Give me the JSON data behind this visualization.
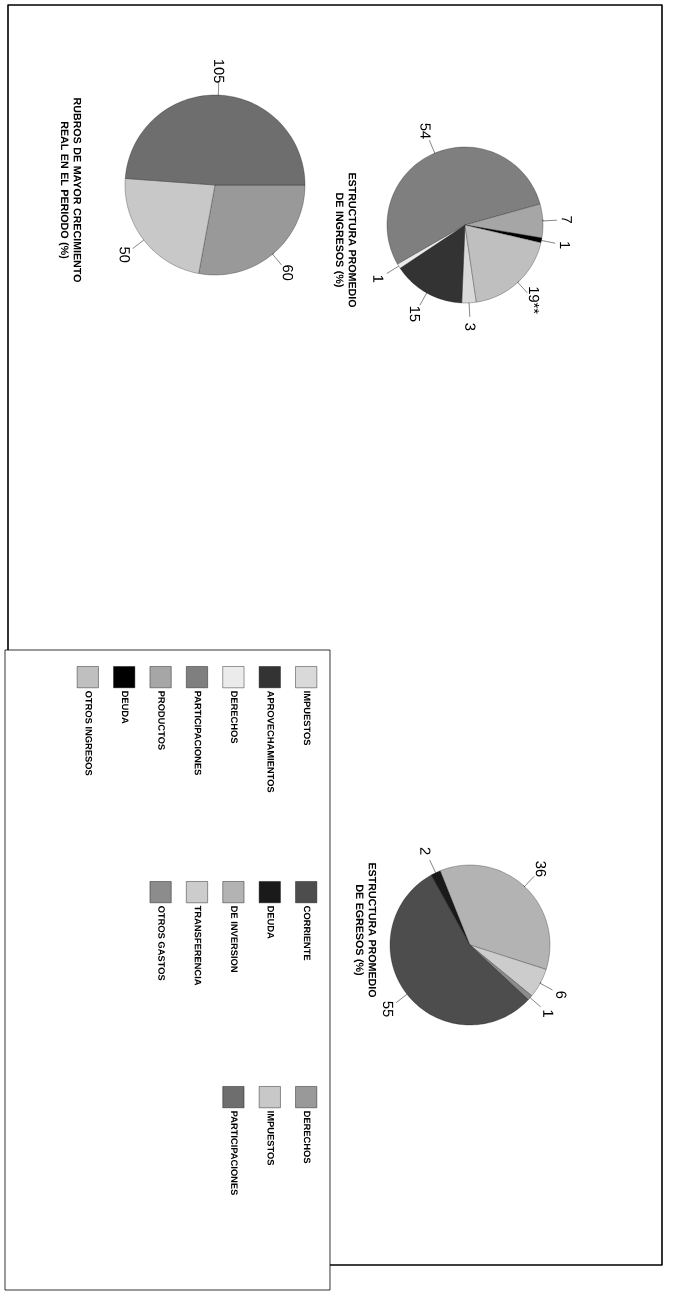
{
  "chart_data": [
    {
      "type": "pie",
      "title": "ESTRUCTURA PROMEDIO DE INGRESOS (%)",
      "categories": [
        "IMPUESTOS",
        "DERECHOS",
        "PRODUCTOS",
        "APROVECHAMIENTOS",
        "PARTICIPACIONES",
        "OTROS INGRESOS",
        "DEUDA"
      ],
      "values": [
        3,
        1,
        7,
        15,
        54,
        19,
        1
      ],
      "value_labels": [
        "3",
        "1",
        "7",
        "15",
        "54",
        "19**",
        "1"
      ],
      "colors": [
        "#d9d9d9",
        "#ebebeb",
        "#a6a6a6",
        "#333333",
        "#7f7f7f",
        "#bfbfbf",
        "#000000"
      ],
      "legend": "bottom left"
    },
    {
      "type": "pie",
      "title": "ESTRUCTURA PROMEDIO DE EGRESOS (%)",
      "categories": [
        "CORRIENTE",
        "DE INVERSION",
        "DEUDA",
        "TRANSFERENCIA",
        "OTROS GASTOS"
      ],
      "values": [
        55,
        36,
        2,
        6,
        1
      ],
      "data_labels": true,
      "colors": [
        "#4d4d4d",
        "#b3b3b3",
        "#1a1a1a",
        "#cccccc",
        "#8c8c8c"
      ],
      "legend": "left"
    },
    {
      "type": "pie",
      "title": "RUBROS DE MAYOR CRECIMIENTO REAL EN EL PERIODO (%)",
      "categories": [
        "DERECHOS",
        "IMPUESTOS",
        "PARTICIPACIONES"
      ],
      "values": [
        60,
        50,
        105
      ],
      "data_labels": true,
      "colors": [
        "#999999",
        "#c8c8c8",
        "#6e6e6e"
      ],
      "legend": "bottom"
    }
  ]
}
